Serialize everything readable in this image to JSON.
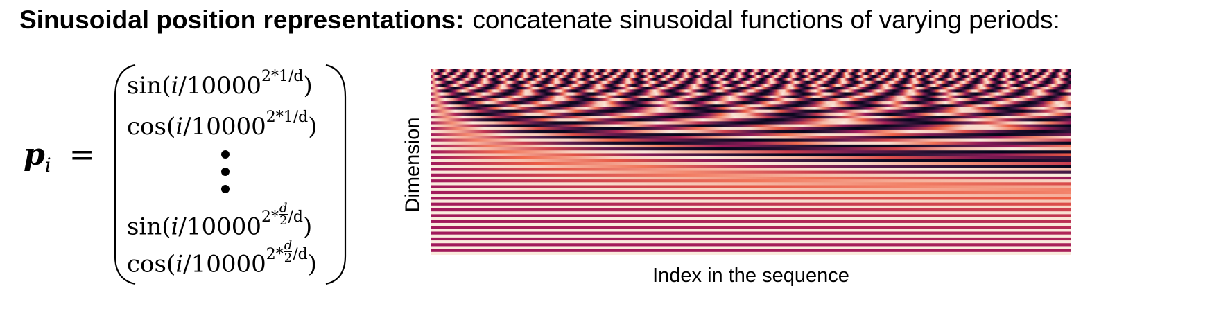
{
  "header": {
    "title_bold": "Sinusoidal position representations:",
    "title_rest": "concatenate sinusoidal functions of varying periods:"
  },
  "formula": {
    "lhs": "p",
    "lhs_sub": "i",
    "equals": "=",
    "rows": [
      {
        "fn": "sin(",
        "var": "i",
        "base": "/10000",
        "exp": "2*1/d",
        "close": ")"
      },
      {
        "fn": "cos(",
        "var": "i",
        "base": "/10000",
        "exp": "2*1/d",
        "close": ")"
      },
      {
        "fn": "sin(",
        "var": "i",
        "base": "/10000",
        "exp_pre": "2*",
        "frac_num": "d",
        "frac_den": "2",
        "exp_post": "/d",
        "close": ")"
      },
      {
        "fn": "cos(",
        "var": "i",
        "base": "/10000",
        "exp_pre": "2*",
        "frac_num": "d",
        "frac_den": "2",
        "exp_post": "/d",
        "close": ")"
      }
    ]
  },
  "heatmap": {
    "y_label": "Dimension",
    "x_label": "Index in the sequence"
  }
}
